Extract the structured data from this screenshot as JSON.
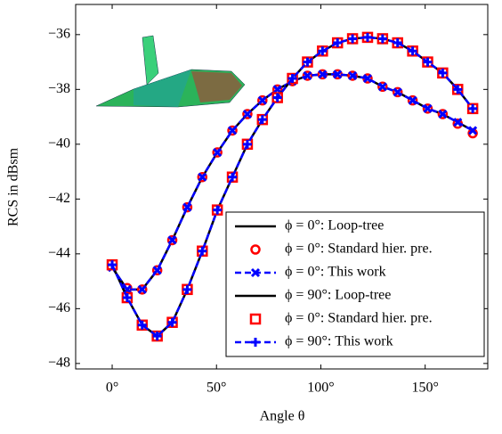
{
  "chart_data": {
    "type": "line",
    "xlabel": "Angle θ",
    "ylabel": "RCS in dBsm",
    "x": [
      0,
      7.2,
      14.4,
      21.6,
      28.8,
      36,
      43.2,
      50.4,
      57.6,
      64.8,
      72,
      79.2,
      86.4,
      93.6,
      100.8,
      108,
      115.2,
      122.4,
      129.6,
      136.8,
      144,
      151.2,
      158.4,
      165.6,
      172.8
    ],
    "xlim": [
      -17.5,
      180
    ],
    "ylim": [
      -48.2,
      -34.9
    ],
    "xticks": [
      {
        "value": 0,
        "label": "0°"
      },
      {
        "value": 50,
        "label": "50°"
      },
      {
        "value": 100,
        "label": "100°"
      },
      {
        "value": 150,
        "label": "150°"
      }
    ],
    "yticks": [
      {
        "value": -48,
        "label": "−48"
      },
      {
        "value": -46,
        "label": "−46"
      },
      {
        "value": -44,
        "label": "−44"
      },
      {
        "value": -42,
        "label": "−42"
      },
      {
        "value": -40,
        "label": "−40"
      },
      {
        "value": -38,
        "label": "−38"
      },
      {
        "value": -36,
        "label": "−36"
      }
    ],
    "legend": "lower right",
    "series": [
      {
        "name": "ϕ = 0°: Loop-tree",
        "color": "#000000",
        "style": "line",
        "values": [
          -44.5,
          -45.3,
          -45.3,
          -44.6,
          -43.5,
          -42.3,
          -41.2,
          -40.3,
          -39.5,
          -38.9,
          -38.4,
          -38.0,
          -37.7,
          -37.5,
          -37.45,
          -37.45,
          -37.5,
          -37.6,
          -37.9,
          -38.1,
          -38.4,
          -38.7,
          -38.9,
          -39.2,
          -39.5
        ]
      },
      {
        "name": "ϕ = 0°: Standard hier. pre.",
        "color": "#ff0000",
        "style": "markers",
        "marker": "circle",
        "values": [
          -44.4,
          -45.25,
          -45.3,
          -44.6,
          -43.5,
          -42.3,
          -41.2,
          -40.3,
          -39.5,
          -38.9,
          -38.4,
          -38.0,
          -37.7,
          -37.5,
          -37.45,
          -37.45,
          -37.5,
          -37.6,
          -37.9,
          -38.1,
          -38.4,
          -38.7,
          -38.9,
          -39.25,
          -39.6
        ]
      },
      {
        "name": "ϕ = 0°: This work",
        "color": "#0000ff",
        "style": "dashed",
        "marker": "x",
        "values": [
          -44.5,
          -45.3,
          -45.3,
          -44.6,
          -43.5,
          -42.3,
          -41.2,
          -40.3,
          -39.5,
          -38.9,
          -38.4,
          -38.0,
          -37.7,
          -37.5,
          -37.45,
          -37.45,
          -37.5,
          -37.6,
          -37.9,
          -38.1,
          -38.4,
          -38.7,
          -38.9,
          -39.2,
          -39.5
        ]
      },
      {
        "name": "ϕ = 90°: Loop-tree",
        "color": "#000000",
        "style": "line",
        "values": [
          -44.4,
          -45.6,
          -46.6,
          -47.0,
          -46.5,
          -45.3,
          -43.9,
          -42.4,
          -41.2,
          -40.0,
          -39.1,
          -38.3,
          -37.6,
          -37.0,
          -36.6,
          -36.3,
          -36.15,
          -36.1,
          -36.15,
          -36.3,
          -36.6,
          -37.0,
          -37.4,
          -38.0,
          -38.7
        ]
      },
      {
        "name": "ϕ = 0°: Standard hier. pre.",
        "color": "#ff0000",
        "style": "markers",
        "marker": "square",
        "values": [
          -44.4,
          -45.6,
          -46.6,
          -47.0,
          -46.5,
          -45.3,
          -43.9,
          -42.4,
          -41.2,
          -40.0,
          -39.1,
          -38.3,
          -37.6,
          -37.0,
          -36.6,
          -36.3,
          -36.15,
          -36.1,
          -36.15,
          -36.3,
          -36.6,
          -37.0,
          -37.4,
          -38.0,
          -38.7
        ]
      },
      {
        "name": "ϕ = 90°: This work",
        "color": "#0000ff",
        "style": "dashed",
        "marker": "plus",
        "values": [
          -44.4,
          -45.6,
          -46.6,
          -47.0,
          -46.5,
          -45.3,
          -43.9,
          -42.4,
          -41.2,
          -40.0,
          -39.1,
          -38.3,
          -37.6,
          -37.0,
          -36.6,
          -36.3,
          -36.15,
          -36.1,
          -36.15,
          -36.3,
          -36.6,
          -37.0,
          -37.4,
          -38.0,
          -38.7
        ]
      }
    ]
  }
}
